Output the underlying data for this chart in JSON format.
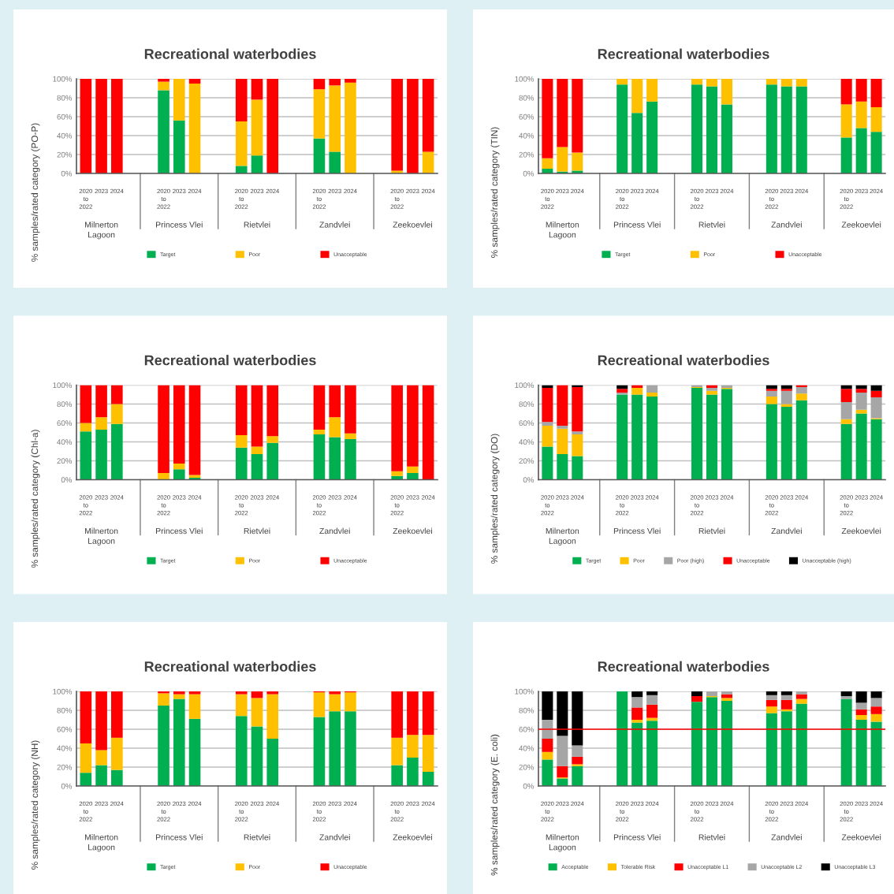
{
  "chart_data": [
    {
      "type": "bar",
      "stacked": true,
      "title": "Recreational waterbodies",
      "ylabel": "% samples/rated category (PO-P)",
      "categories": [
        "2020\nto\n2022",
        "2023",
        "2024",
        null,
        null,
        "2020\nto\n2022",
        "2023",
        "2024",
        null,
        null,
        "2020\nto\n2022",
        "2023",
        "2024",
        null,
        null,
        "2020\nto\n2022",
        "2023",
        "2024",
        null,
        null,
        "2020\nto\n2022",
        "2023",
        "2024"
      ],
      "annotations": [
        "Milnerton\nLagoon",
        "Princess Vlei",
        "Rietvlei",
        "Zandvlei",
        "Zeekoevlei"
      ],
      "ylim": [
        0,
        100
      ],
      "yticks": [
        {
          "value": 0,
          "label": "0%"
        },
        {
          "value": 20,
          "label": "20%"
        },
        {
          "value": 40,
          "label": "40%"
        },
        {
          "value": 60,
          "label": "60%"
        },
        {
          "value": 80,
          "label": "80%"
        },
        {
          "value": 100,
          "label": "100%"
        }
      ],
      "grid": "y",
      "legend": "bottom",
      "series": [
        {
          "name": "Target",
          "color": "#00b050",
          "values": [
            0,
            0,
            0,
            null,
            null,
            88,
            56,
            0,
            null,
            null,
            8,
            19,
            0,
            null,
            null,
            37,
            23,
            0,
            null,
            null,
            0,
            0,
            0
          ]
        },
        {
          "name": "Poor",
          "color": "#ffc000",
          "values": [
            0,
            0,
            0,
            null,
            null,
            9,
            44,
            95,
            null,
            null,
            47,
            59,
            0,
            null,
            null,
            52,
            70,
            96,
            null,
            null,
            3,
            0,
            23
          ]
        },
        {
          "name": "Unacceptable",
          "color": "#ff0000",
          "values": [
            100,
            100,
            100,
            null,
            null,
            3,
            0,
            5,
            null,
            null,
            45,
            22,
            100,
            null,
            null,
            11,
            7,
            4,
            null,
            null,
            97,
            100,
            77
          ]
        }
      ]
    },
    {
      "type": "bar",
      "stacked": true,
      "title": "Recreational waterbodies",
      "ylabel": "% samples/rated category (TIN)",
      "categories": [
        "2020\nto\n2022",
        "2023",
        "2024",
        null,
        null,
        "2020\nto\n2022",
        "2023",
        "2024",
        null,
        null,
        "2020\nto\n2022",
        "2023",
        "2024",
        null,
        null,
        "2020\nto\n2022",
        "2023",
        "2024",
        null,
        null,
        "2020\nto\n2022",
        "2023",
        "2024"
      ],
      "annotations": [
        "Milnerton\nLagoon",
        "Princess Vlei",
        "Rietvlei",
        "Zandvlei",
        "Zeekoevlei"
      ],
      "ylim": [
        0,
        100
      ],
      "yticks": [
        {
          "value": 0,
          "label": "0%"
        },
        {
          "value": 20,
          "label": "20%"
        },
        {
          "value": 40,
          "label": "40%"
        },
        {
          "value": 60,
          "label": "60%"
        },
        {
          "value": 80,
          "label": "80%"
        },
        {
          "value": 100,
          "label": "100%"
        }
      ],
      "grid": "y",
      "legend": "bottom",
      "series": [
        {
          "name": "Target",
          "color": "#00b050",
          "values": [
            5,
            2,
            3,
            null,
            null,
            94,
            64,
            76,
            null,
            null,
            94,
            92,
            73,
            null,
            null,
            94,
            92,
            92,
            null,
            null,
            38,
            48,
            44
          ]
        },
        {
          "name": "Poor",
          "color": "#ffc000",
          "values": [
            11,
            26,
            19,
            null,
            null,
            6,
            36,
            24,
            null,
            null,
            6,
            8,
            27,
            null,
            null,
            6,
            8,
            8,
            null,
            null,
            35,
            28,
            26
          ]
        },
        {
          "name": "Unacceptable",
          "color": "#ff0000",
          "values": [
            84,
            72,
            78,
            null,
            null,
            0,
            0,
            0,
            null,
            null,
            0,
            0,
            0,
            null,
            null,
            0,
            0,
            0,
            null,
            null,
            27,
            24,
            30
          ]
        }
      ]
    },
    {
      "type": "bar",
      "stacked": true,
      "title": "Recreational waterbodies",
      "ylabel": "% samples/rated category (Chl-a)",
      "categories": [
        "2020\nto\n2022",
        "2023",
        "2024",
        null,
        null,
        "2020\nto\n2022",
        "2023",
        "2024",
        null,
        null,
        "2020\nto\n2022",
        "2023",
        "2024",
        null,
        null,
        "2020\nto\n2022",
        "2023",
        "2024",
        null,
        null,
        "2020\nto\n2022",
        "2023",
        "2024"
      ],
      "annotations": [
        "Milnerton\nLagoon",
        "Princess Vlei",
        "Rietvlei",
        "Zandvlei",
        "Zeekoevlei"
      ],
      "ylim": [
        0,
        100
      ],
      "yticks": [
        {
          "value": 0,
          "label": "0%"
        },
        {
          "value": 20,
          "label": "20%"
        },
        {
          "value": 40,
          "label": "40%"
        },
        {
          "value": 60,
          "label": "60%"
        },
        {
          "value": 80,
          "label": "80%"
        },
        {
          "value": 100,
          "label": "100%"
        }
      ],
      "grid": "y",
      "legend": "bottom",
      "series": [
        {
          "name": "Target",
          "color": "#00b050",
          "values": [
            51,
            53,
            59,
            null,
            null,
            0,
            11,
            2,
            null,
            null,
            34,
            27,
            39,
            null,
            null,
            48,
            45,
            43,
            null,
            null,
            4,
            7,
            0
          ]
        },
        {
          "name": "Poor",
          "color": "#ffc000",
          "values": [
            9,
            13,
            21,
            null,
            null,
            7,
            6,
            3,
            null,
            null,
            13,
            8,
            7,
            null,
            null,
            5,
            21,
            6,
            null,
            null,
            5,
            7,
            0
          ]
        },
        {
          "name": "Unacceptable",
          "color": "#ff0000",
          "values": [
            40,
            34,
            20,
            null,
            null,
            93,
            83,
            95,
            null,
            null,
            53,
            65,
            54,
            null,
            null,
            47,
            34,
            51,
            null,
            null,
            91,
            86,
            100
          ]
        }
      ]
    },
    {
      "type": "bar",
      "stacked": true,
      "title": "Recreational waterbodies",
      "ylabel": "% samples/rated category (DO)",
      "categories": [
        "2020\nto\n2022",
        "2023",
        "2024",
        null,
        null,
        "2020\nto\n2022",
        "2023",
        "2024",
        null,
        null,
        "2020\nto\n2022",
        "2023",
        "2024",
        null,
        null,
        "2020\nto\n2022",
        "2023",
        "2024",
        null,
        null,
        "2020\nto\n2022",
        "2023",
        "2024"
      ],
      "annotations": [
        "Milnerton\nLagoon",
        "Princess Vlei",
        "Rietvlei",
        "Zandvlei",
        "Zeekoevlei"
      ],
      "ylim": [
        0,
        100
      ],
      "yticks": [
        {
          "value": 0,
          "label": "0%"
        },
        {
          "value": 20,
          "label": "20%"
        },
        {
          "value": 40,
          "label": "40%"
        },
        {
          "value": 60,
          "label": "60%"
        },
        {
          "value": 80,
          "label": "80%"
        },
        {
          "value": 100,
          "label": "100%"
        }
      ],
      "grid": "y",
      "legend": "bottom",
      "series": [
        {
          "name": "Target",
          "color": "#00b050",
          "values": [
            35,
            27,
            25,
            null,
            null,
            90,
            90,
            88,
            null,
            null,
            97,
            90,
            96,
            null,
            null,
            80,
            77,
            84,
            null,
            null,
            59,
            70,
            64
          ]
        },
        {
          "name": "Poor",
          "color": "#ffc000",
          "values": [
            22,
            27,
            23,
            null,
            null,
            0,
            7,
            4,
            null,
            null,
            1,
            4,
            1,
            null,
            null,
            8,
            3,
            7,
            null,
            null,
            5,
            4,
            1
          ]
        },
        {
          "name": "Poor (high)",
          "color": "#a6a6a6",
          "values": [
            4,
            3,
            3,
            null,
            null,
            2,
            0,
            8,
            null,
            null,
            2,
            3,
            3,
            null,
            null,
            6,
            14,
            7,
            null,
            null,
            18,
            18,
            22
          ]
        },
        {
          "name": "Unacceptable",
          "color": "#ff0000",
          "values": [
            36,
            43,
            47,
            null,
            null,
            4,
            3,
            0,
            null,
            null,
            0,
            3,
            0,
            null,
            null,
            2,
            2,
            2,
            null,
            null,
            14,
            4,
            7
          ]
        },
        {
          "name": "Unacceptable (high)",
          "color": "#000000",
          "values": [
            3,
            0,
            2,
            null,
            null,
            4,
            0,
            0,
            null,
            null,
            0,
            0,
            0,
            null,
            null,
            4,
            4,
            0,
            null,
            null,
            4,
            4,
            6
          ]
        }
      ]
    },
    {
      "type": "bar",
      "stacked": true,
      "title": "Recreational waterbodies",
      "ylabel": "% samples/rated category (NH)",
      "categories": [
        "2020\nto\n2022",
        "2023",
        "2024",
        null,
        null,
        "2020\nto\n2022",
        "2023",
        "2024",
        null,
        null,
        "2020\nto\n2022",
        "2023",
        "2024",
        null,
        null,
        "2020\nto\n2022",
        "2023",
        "2024",
        null,
        null,
        "2020\nto\n2022",
        "2023",
        "2024"
      ],
      "annotations": [
        "Milnerton\nLagoon",
        "Princess Vlei",
        "Rietvlei",
        "Zandvlei",
        "Zeekoevlei"
      ],
      "ylim": [
        0,
        100
      ],
      "yticks": [
        {
          "value": 0,
          "label": "0%"
        },
        {
          "value": 20,
          "label": "20%"
        },
        {
          "value": 40,
          "label": "40%"
        },
        {
          "value": 60,
          "label": "60%"
        },
        {
          "value": 80,
          "label": "80%"
        },
        {
          "value": 100,
          "label": "100%"
        }
      ],
      "grid": "y",
      "legend": "bottom",
      "series": [
        {
          "name": "Target",
          "color": "#00b050",
          "values": [
            14,
            22,
            17,
            null,
            null,
            85,
            92,
            71,
            null,
            null,
            74,
            63,
            50,
            null,
            null,
            73,
            79,
            79,
            null,
            null,
            22,
            30,
            15
          ]
        },
        {
          "name": "Poor",
          "color": "#ffc000",
          "values": [
            31,
            16,
            34,
            null,
            null,
            13,
            5,
            26,
            null,
            null,
            23,
            30,
            47,
            null,
            null,
            26,
            18,
            20,
            null,
            null,
            29,
            24,
            39
          ]
        },
        {
          "name": "Unacceptable",
          "color": "#ff0000",
          "values": [
            55,
            62,
            49,
            null,
            null,
            2,
            3,
            3,
            null,
            null,
            3,
            7,
            3,
            null,
            null,
            1,
            3,
            1,
            null,
            null,
            49,
            46,
            46
          ]
        }
      ]
    },
    {
      "type": "bar",
      "stacked": true,
      "title": "Recreational waterbodies",
      "ylabel": "% samples/rated category (E. coli)",
      "categories": [
        "2020\nto\n2022",
        "2023",
        "2024",
        null,
        null,
        "2020\nto\n2022",
        "2023",
        "2024",
        null,
        null,
        "2020\nto\n2022",
        "2023",
        "2024",
        null,
        null,
        "2020\nto\n2022",
        "2023",
        "2024",
        null,
        null,
        "2020\nto\n2022",
        "2023",
        "2024"
      ],
      "annotations": [
        "Milnerton\nLagoon",
        "Princess Vlei",
        "Rietvlei",
        "Zandvlei",
        "Zeekoevlei"
      ],
      "ylim": [
        0,
        100
      ],
      "yticks": [
        {
          "value": 0,
          "label": "0%"
        },
        {
          "value": 20,
          "label": "20%"
        },
        {
          "value": 40,
          "label": "40%"
        },
        {
          "value": 60,
          "label": "60%"
        },
        {
          "value": 80,
          "label": "80%"
        },
        {
          "value": 100,
          "label": "100%"
        }
      ],
      "grid": "y",
      "legend": "bottom",
      "ref_lines": [
        {
          "axis": "y",
          "value": 60,
          "color": "#ff0000"
        }
      ],
      "series": [
        {
          "name": "Acceptable",
          "color": "#00b050",
          "values": [
            28,
            8,
            21,
            null,
            null,
            100,
            67,
            69,
            null,
            null,
            89,
            94,
            90,
            null,
            null,
            77,
            79,
            87,
            null,
            null,
            92,
            70,
            68
          ]
        },
        {
          "name": "Tolerable Risk",
          "color": "#ffc000",
          "values": [
            8,
            1,
            2,
            null,
            null,
            0,
            3,
            3,
            null,
            null,
            0,
            1,
            3,
            null,
            null,
            7,
            2,
            5,
            null,
            null,
            0,
            5,
            8
          ]
        },
        {
          "name": "Unacceptable L1",
          "color": "#ff0000",
          "values": [
            14,
            12,
            8,
            null,
            null,
            0,
            13,
            14,
            null,
            null,
            6,
            0,
            4,
            null,
            null,
            7,
            10,
            5,
            null,
            null,
            0,
            6,
            8
          ]
        },
        {
          "name": "Unacceptable L2",
          "color": "#a6a6a6",
          "values": [
            20,
            32,
            12,
            null,
            null,
            0,
            11,
            10,
            null,
            null,
            0,
            5,
            3,
            null,
            null,
            5,
            5,
            3,
            null,
            null,
            3,
            7,
            9
          ]
        },
        {
          "name": "Unacceptable L3",
          "color": "#000000",
          "values": [
            30,
            47,
            57,
            null,
            null,
            0,
            6,
            4,
            null,
            null,
            5,
            0,
            0,
            null,
            null,
            4,
            4,
            0,
            null,
            null,
            5,
            12,
            7
          ]
        }
      ]
    }
  ]
}
